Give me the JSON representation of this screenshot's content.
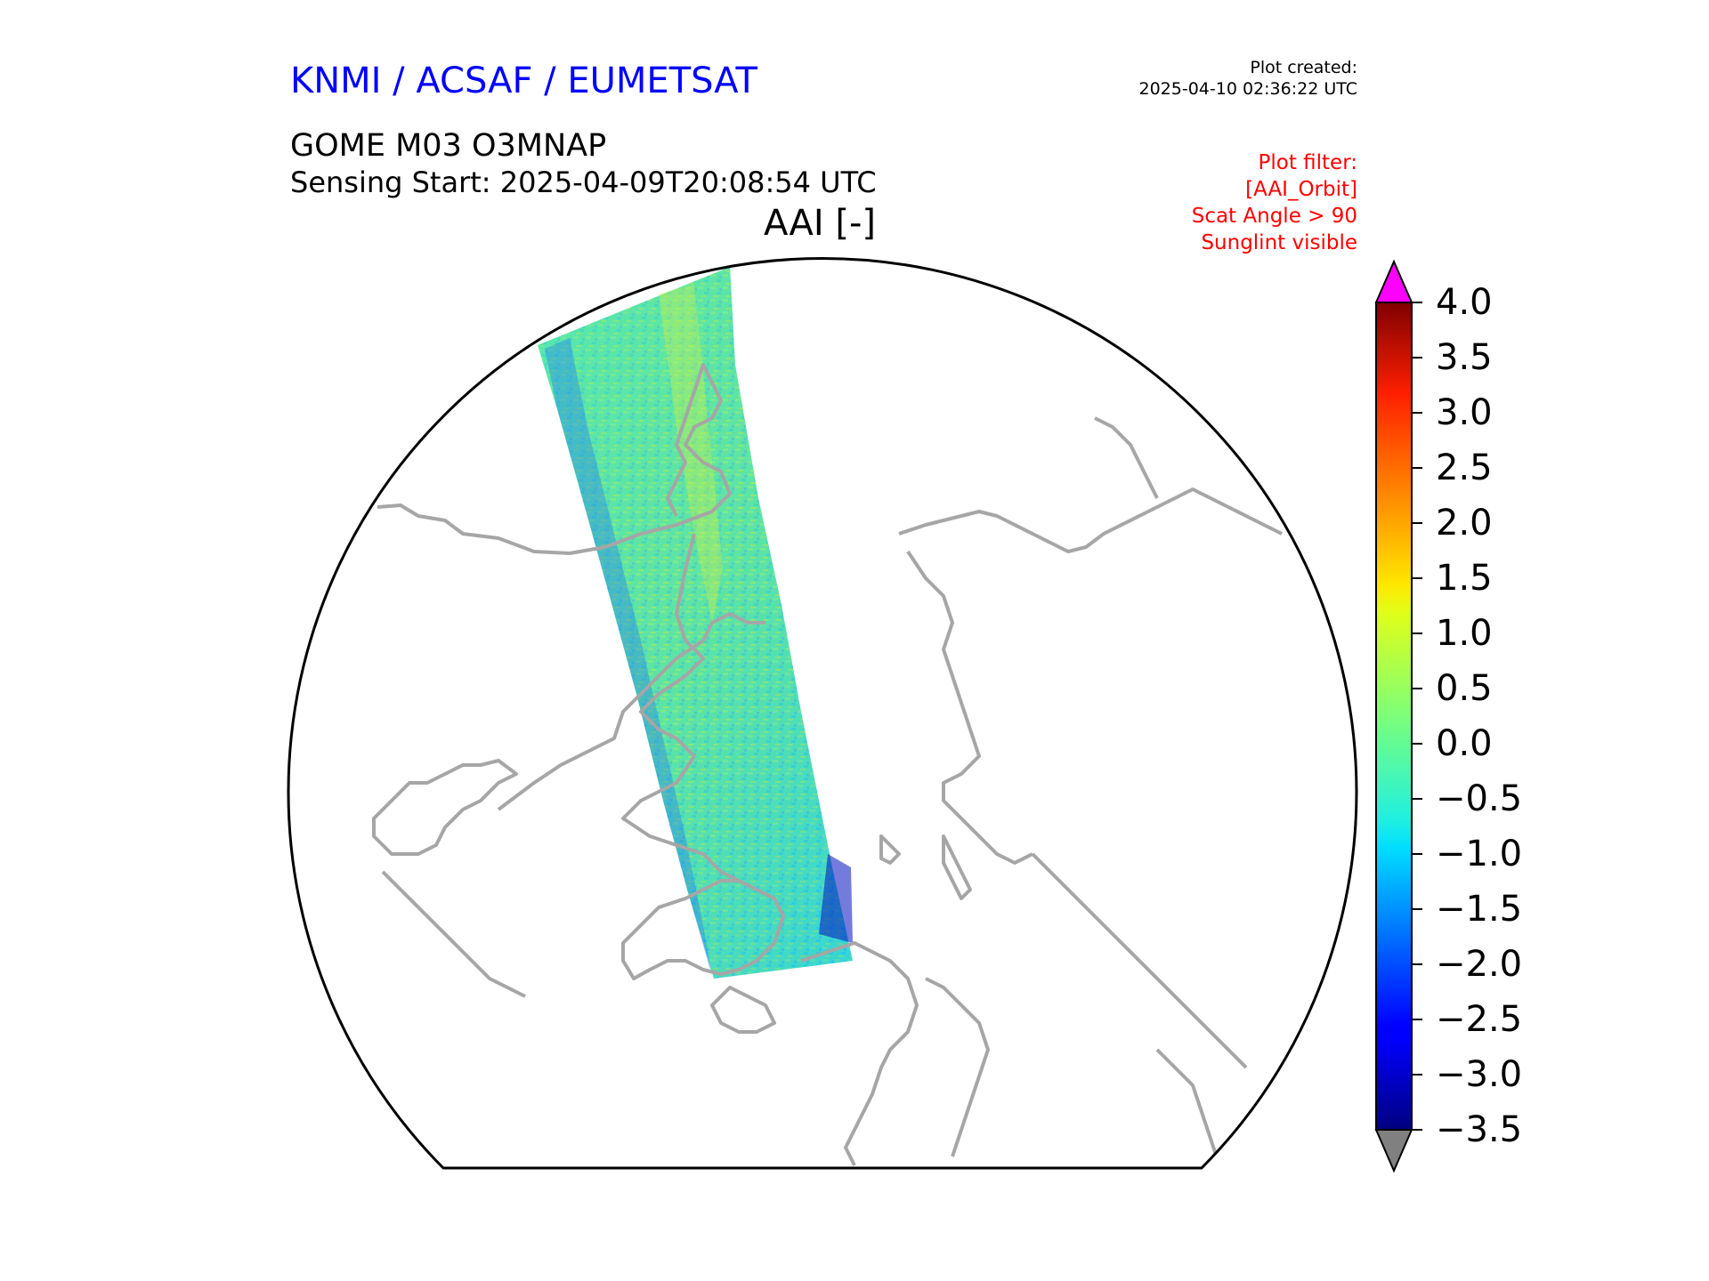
{
  "header": {
    "organisation": "KNMI / ACSAF / EUMETSAT",
    "created_label": "Plot created:",
    "created_time": "2025-04-10 02:36:22 UTC",
    "product": "GOME M03 O3MNAP",
    "sensing_start": "Sensing Start: 2025-04-09T20:08:54 UTC",
    "variable": "AAI [-]",
    "filter_lines": [
      "Plot filter:",
      "[AAI_Orbit]",
      "Scat Angle > 90",
      "Sunglint visible"
    ]
  },
  "colorbar": {
    "min": -3.5,
    "max": 4.0,
    "ticks": [
      "4.0",
      "3.5",
      "3.0",
      "2.5",
      "2.0",
      "1.5",
      "1.0",
      "0.5",
      "0.0",
      "−0.5",
      "−1.0",
      "−1.5",
      "−2.0",
      "−2.5",
      "−3.0",
      "−3.5"
    ],
    "tick_values": [
      4.0,
      3.5,
      3.0,
      2.5,
      2.0,
      1.5,
      1.0,
      0.5,
      0.0,
      -0.5,
      -1.0,
      -1.5,
      -2.0,
      -2.5,
      -3.0,
      -3.5
    ],
    "over_color": "#ff00ff",
    "under_color": "#808080",
    "colormap": "jet"
  },
  "map": {
    "projection": "north-polar-stereographic",
    "coastline_color": "#a6a6a6",
    "boundary_color": "#000000"
  }
}
